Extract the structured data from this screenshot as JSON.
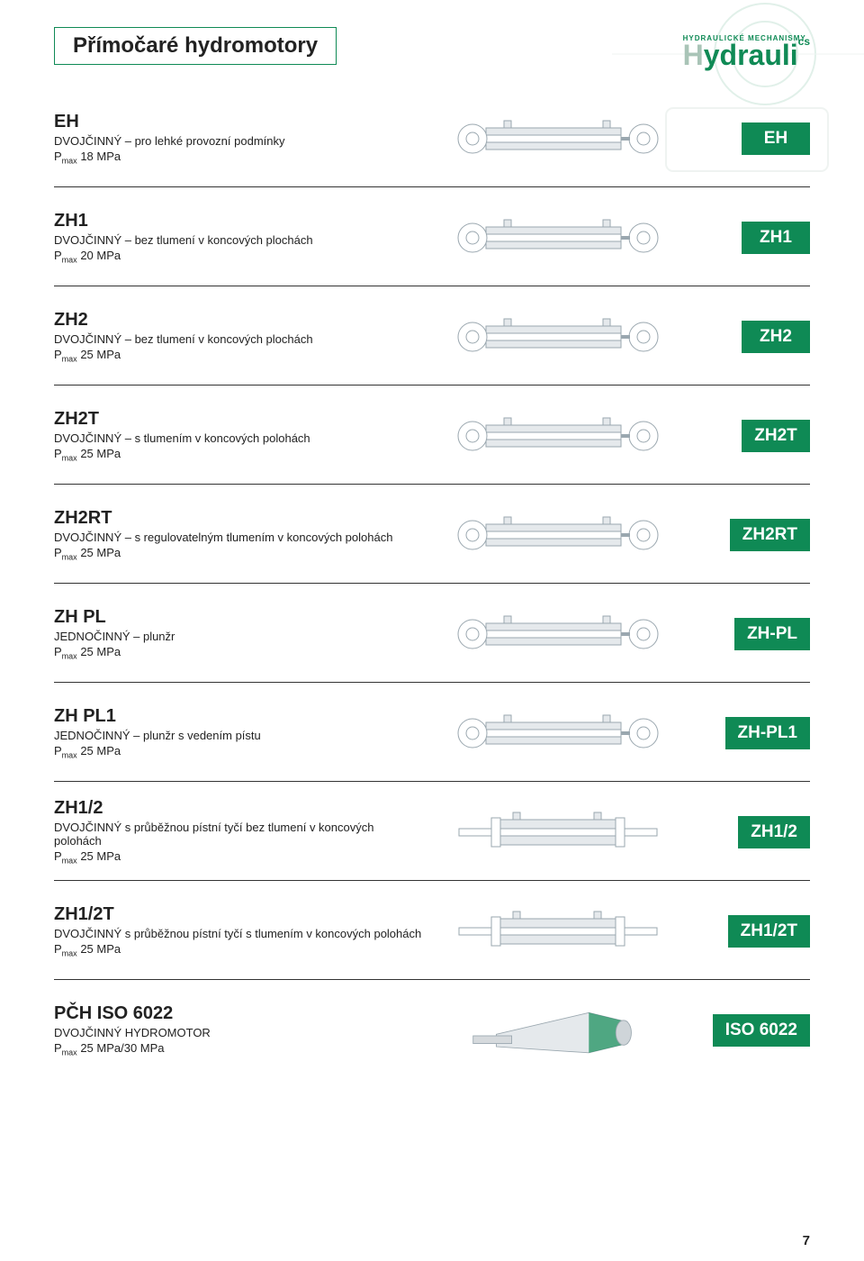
{
  "header": {
    "title": "Přímočaré hydromotory",
    "brand_tag": "HYDRAULICKÉ MECHANISMY",
    "brand_main": "Hydrauli",
    "brand_sup": "cs"
  },
  "colors": {
    "accent": "#0f8a55",
    "rule": "#333333",
    "badge_bg": "#0f8a55",
    "badge_text": "#ffffff",
    "diagram_stroke": "#9aa7af",
    "diagram_fill": "#e5e9ec",
    "diagram_accent": "#0f8a55"
  },
  "page_number": "7",
  "products": [
    {
      "code": "EH",
      "desc": "DVOJČINNÝ – pro lehké provozní podmínky",
      "p_prefix": "P",
      "p_sub": "max",
      "p_value": "18 MPa",
      "badge": "EH",
      "diagram": "eyes"
    },
    {
      "code": "ZH1",
      "desc": "DVOJČINNÝ – bez tlumení v koncových plochách",
      "p_prefix": "P",
      "p_sub": "max",
      "p_value": "20 MPa",
      "badge": "ZH1",
      "diagram": "eyes"
    },
    {
      "code": "ZH2",
      "desc": "DVOJČINNÝ – bez tlumení v koncových plochách",
      "p_prefix": "P",
      "p_sub": "max",
      "p_value": "25 MPa",
      "badge": "ZH2",
      "diagram": "eyes"
    },
    {
      "code": "ZH2T",
      "desc": "DVOJČINNÝ – s tlumením v koncových polohách",
      "p_prefix": "P",
      "p_sub": "max",
      "p_value": "25 MPa",
      "badge": "ZH2T",
      "diagram": "eyes"
    },
    {
      "code": "ZH2RT",
      "desc": "DVOJČINNÝ – s regulovatelným tlumením v koncových polohách",
      "p_prefix": "P",
      "p_sub": "max",
      "p_value": "25 MPa",
      "badge": "ZH2RT",
      "diagram": "eyes"
    },
    {
      "code": "ZH PL",
      "desc": "JEDNOČINNÝ – plunžr",
      "p_prefix": "P",
      "p_sub": "max",
      "p_value": "25 MPa",
      "badge": "ZH-PL",
      "diagram": "eyes"
    },
    {
      "code": "ZH PL1",
      "desc": "JEDNOČINNÝ – plunžr s vedením pístu",
      "p_prefix": "P",
      "p_sub": "max",
      "p_value": "25 MPa",
      "badge": "ZH-PL1",
      "diagram": "eyes"
    },
    {
      "code": "ZH1/2",
      "desc": "DVOJČINNÝ s průběžnou pístní tyčí bez tlumení v koncových polohách",
      "p_prefix": "P",
      "p_sub": "max",
      "p_value": "25 MPa",
      "badge": "ZH1/2",
      "diagram": "through"
    },
    {
      "code": "ZH1/2T",
      "desc": "DVOJČINNÝ s průběžnou pístní tyčí s tlumením v koncových polohách",
      "p_prefix": "P",
      "p_sub": "max",
      "p_value": "25 MPa",
      "badge": "ZH1/2T",
      "diagram": "through"
    },
    {
      "code": "PČH ISO 6022",
      "desc": "DVOJČINNÝ HYDROMOTOR",
      "p_prefix": "P",
      "p_sub": "max",
      "p_value": "25 MPa/30 MPa",
      "badge": "ISO 6022",
      "diagram": "iso"
    }
  ]
}
